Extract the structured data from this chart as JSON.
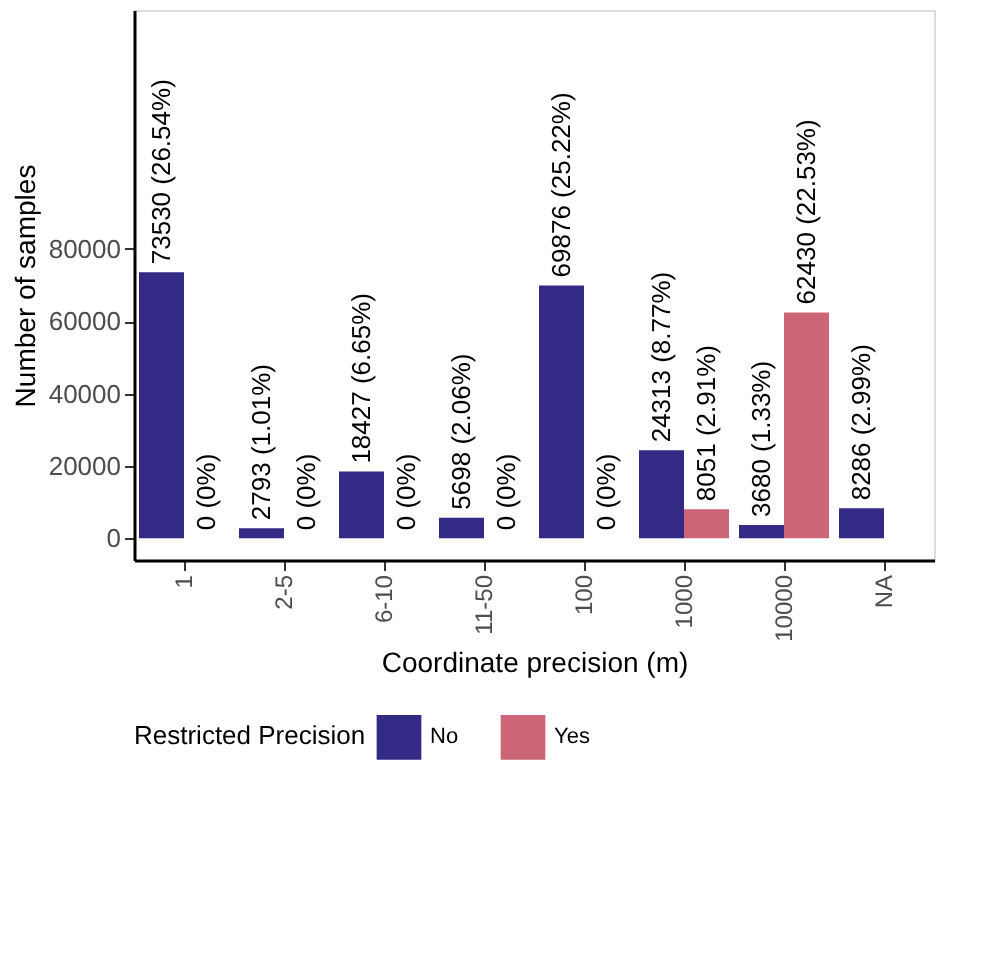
{
  "chart_data": {
    "type": "bar",
    "xlabel": "Coordinate precision (m)",
    "ylabel": "Number of samples",
    "legend_title": "Restricted Precision",
    "legend": "bottom",
    "grid": false,
    "categories": [
      "1",
      "2-5",
      "6-10",
      "11-50",
      "100",
      "1000",
      "10000",
      "NA"
    ],
    "ylim": [
      -6000,
      146000
    ],
    "yticks": [
      0,
      20000,
      40000,
      60000,
      80000
    ],
    "series": [
      {
        "name": "No",
        "color": "#332a85",
        "values": [
          73530,
          2793,
          18427,
          5698,
          69876,
          24313,
          3680,
          8286
        ],
        "value_labels": [
          "73530 (26.54%)",
          "2793 (1.01%)",
          "18427 (6.65%)",
          "5698 (2.06%)",
          "69876 (25.22%)",
          "24313 (8.77%)",
          "3680 (1.33%)",
          "8286 (2.99%)"
        ]
      },
      {
        "name": "Yes",
        "color": "#cc6677",
        "values": [
          0,
          0,
          0,
          0,
          0,
          8051,
          62430,
          null
        ],
        "value_labels": [
          "0 (0%)",
          "0 (0%)",
          "0 (0%)",
          "0 (0%)",
          "0 (0%)",
          "8051 (2.91%)",
          "62430 (22.53%)",
          null
        ]
      }
    ]
  }
}
